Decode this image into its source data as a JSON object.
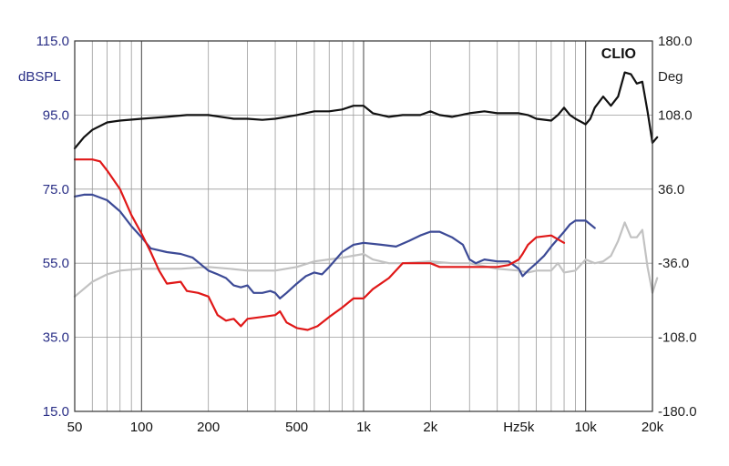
{
  "chart_data": {
    "type": "line",
    "brand": "CLIO",
    "xscale": "log",
    "xlim": [
      50,
      20000
    ],
    "x_ticks": [
      {
        "value": 50,
        "label": "50"
      },
      {
        "value": 100,
        "label": "100"
      },
      {
        "value": 200,
        "label": "200"
      },
      {
        "value": 500,
        "label": "500"
      },
      {
        "value": 1000,
        "label": "1k"
      },
      {
        "value": 2000,
        "label": "2k"
      },
      {
        "value": 5000,
        "label": "Hz5k"
      },
      {
        "value": 10000,
        "label": "10k"
      },
      {
        "value": 20000,
        "label": "20k"
      }
    ],
    "ylabel_left": "dBSPL",
    "ylim_left": [
      15,
      115
    ],
    "y_ticks_left": [
      "15.0",
      "35.0",
      "55.0",
      "75.0",
      "95.0",
      "115.0"
    ],
    "ylabel_right": "Deg",
    "ylim_right": [
      -180,
      180
    ],
    "y_ticks_right": [
      "-180.0",
      "-108.0",
      "-36.0",
      "36.0",
      "108.0",
      "180.0"
    ],
    "grid": true,
    "series": [
      {
        "color": "#111111",
        "axis": "left",
        "points": [
          [
            50,
            86
          ],
          [
            55,
            89
          ],
          [
            60,
            91
          ],
          [
            70,
            93
          ],
          [
            80,
            93.5
          ],
          [
            100,
            94
          ],
          [
            130,
            94.5
          ],
          [
            160,
            95
          ],
          [
            200,
            95
          ],
          [
            260,
            94
          ],
          [
            300,
            94
          ],
          [
            350,
            93.7
          ],
          [
            400,
            94
          ],
          [
            500,
            95
          ],
          [
            600,
            96
          ],
          [
            700,
            96
          ],
          [
            800,
            96.5
          ],
          [
            900,
            97.5
          ],
          [
            1000,
            97.5
          ],
          [
            1100,
            95.5
          ],
          [
            1300,
            94.5
          ],
          [
            1500,
            95
          ],
          [
            1800,
            95
          ],
          [
            2000,
            96
          ],
          [
            2200,
            95
          ],
          [
            2500,
            94.5
          ],
          [
            3000,
            95.5
          ],
          [
            3500,
            96
          ],
          [
            4000,
            95.5
          ],
          [
            4500,
            95.5
          ],
          [
            5000,
            95.5
          ],
          [
            5500,
            95
          ],
          [
            6000,
            94
          ],
          [
            7000,
            93.5
          ],
          [
            7500,
            95
          ],
          [
            8000,
            97
          ],
          [
            8500,
            95
          ],
          [
            9000,
            94
          ],
          [
            10000,
            92.5
          ],
          [
            10500,
            94
          ],
          [
            11000,
            97
          ],
          [
            12000,
            100
          ],
          [
            13000,
            97.5
          ],
          [
            14000,
            100
          ],
          [
            15000,
            106.5
          ],
          [
            16000,
            106
          ],
          [
            17000,
            103.5
          ],
          [
            18000,
            104
          ],
          [
            19000,
            96
          ],
          [
            20000,
            87.5
          ],
          [
            21000,
            89
          ]
        ]
      },
      {
        "color": "#e01818",
        "axis": "left",
        "points": [
          [
            50,
            83
          ],
          [
            60,
            83
          ],
          [
            65,
            82.5
          ],
          [
            70,
            80
          ],
          [
            80,
            75
          ],
          [
            90,
            68
          ],
          [
            100,
            63
          ],
          [
            110,
            58
          ],
          [
            120,
            53
          ],
          [
            130,
            49.5
          ],
          [
            150,
            50
          ],
          [
            160,
            47.5
          ],
          [
            180,
            47
          ],
          [
            200,
            46
          ],
          [
            220,
            41
          ],
          [
            240,
            39.5
          ],
          [
            260,
            40
          ],
          [
            280,
            38
          ],
          [
            300,
            40
          ],
          [
            350,
            40.5
          ],
          [
            400,
            41
          ],
          [
            420,
            42
          ],
          [
            450,
            39
          ],
          [
            500,
            37.5
          ],
          [
            560,
            37
          ],
          [
            620,
            38
          ],
          [
            700,
            40.5
          ],
          [
            800,
            43
          ],
          [
            900,
            45.5
          ],
          [
            1000,
            45.5
          ],
          [
            1100,
            48
          ],
          [
            1300,
            51
          ],
          [
            1500,
            55
          ],
          [
            2000,
            55
          ],
          [
            2200,
            54
          ],
          [
            3000,
            54
          ],
          [
            3500,
            54
          ],
          [
            4000,
            54
          ],
          [
            4500,
            54.5
          ],
          [
            5000,
            56
          ],
          [
            5200,
            57.5
          ],
          [
            5500,
            60
          ],
          [
            6000,
            62
          ],
          [
            7000,
            62.5
          ],
          [
            8000,
            60.5
          ]
        ]
      },
      {
        "color": "#3c4a96",
        "axis": "left",
        "points": [
          [
            50,
            73
          ],
          [
            55,
            73.5
          ],
          [
            60,
            73.5
          ],
          [
            70,
            72
          ],
          [
            80,
            69
          ],
          [
            90,
            65
          ],
          [
            100,
            62
          ],
          [
            110,
            59
          ],
          [
            130,
            58
          ],
          [
            150,
            57.5
          ],
          [
            170,
            56.5
          ],
          [
            200,
            53
          ],
          [
            220,
            52
          ],
          [
            240,
            51
          ],
          [
            260,
            49
          ],
          [
            280,
            48.5
          ],
          [
            300,
            49
          ],
          [
            320,
            47
          ],
          [
            350,
            47
          ],
          [
            380,
            47.5
          ],
          [
            400,
            47
          ],
          [
            420,
            45.5
          ],
          [
            450,
            47
          ],
          [
            500,
            49.5
          ],
          [
            550,
            51.5
          ],
          [
            600,
            52.5
          ],
          [
            650,
            52
          ],
          [
            700,
            54
          ],
          [
            800,
            58
          ],
          [
            900,
            60
          ],
          [
            1000,
            60.5
          ],
          [
            1200,
            60
          ],
          [
            1400,
            59.5
          ],
          [
            1600,
            61
          ],
          [
            1800,
            62.5
          ],
          [
            2000,
            63.5
          ],
          [
            2200,
            63.5
          ],
          [
            2500,
            62
          ],
          [
            2800,
            60
          ],
          [
            3000,
            56
          ],
          [
            3200,
            55
          ],
          [
            3500,
            56
          ],
          [
            4000,
            55.5
          ],
          [
            4500,
            55.5
          ],
          [
            5000,
            53.5
          ],
          [
            5200,
            51.5
          ],
          [
            5500,
            53
          ],
          [
            6000,
            55
          ],
          [
            6500,
            57
          ],
          [
            7000,
            59.5
          ],
          [
            8000,
            63.5
          ],
          [
            8500,
            65.5
          ],
          [
            9000,
            66.5
          ],
          [
            10000,
            66.5
          ],
          [
            10500,
            65.5
          ],
          [
            11000,
            64.5
          ]
        ]
      },
      {
        "color": "#c2c2c2",
        "axis": "left",
        "points": [
          [
            50,
            46
          ],
          [
            60,
            50
          ],
          [
            70,
            52
          ],
          [
            80,
            53
          ],
          [
            100,
            53.5
          ],
          [
            150,
            53.5
          ],
          [
            200,
            54
          ],
          [
            250,
            53.5
          ],
          [
            300,
            53
          ],
          [
            400,
            53
          ],
          [
            500,
            54
          ],
          [
            600,
            55.5
          ],
          [
            800,
            56.5
          ],
          [
            1000,
            57.5
          ],
          [
            1100,
            56
          ],
          [
            1300,
            55
          ],
          [
            1500,
            55
          ],
          [
            2000,
            55.5
          ],
          [
            2500,
            55
          ],
          [
            3000,
            55
          ],
          [
            4000,
            53.5
          ],
          [
            5000,
            53
          ],
          [
            5500,
            52.5
          ],
          [
            6000,
            53
          ],
          [
            7000,
            53
          ],
          [
            7500,
            55
          ],
          [
            8000,
            52.5
          ],
          [
            9000,
            53
          ],
          [
            10000,
            56
          ],
          [
            11000,
            55
          ],
          [
            12000,
            55.5
          ],
          [
            13000,
            57
          ],
          [
            14000,
            61
          ],
          [
            15000,
            66
          ],
          [
            16000,
            62
          ],
          [
            17000,
            62
          ],
          [
            18000,
            64
          ],
          [
            19000,
            54
          ],
          [
            20000,
            47
          ],
          [
            21000,
            51
          ]
        ]
      }
    ]
  }
}
